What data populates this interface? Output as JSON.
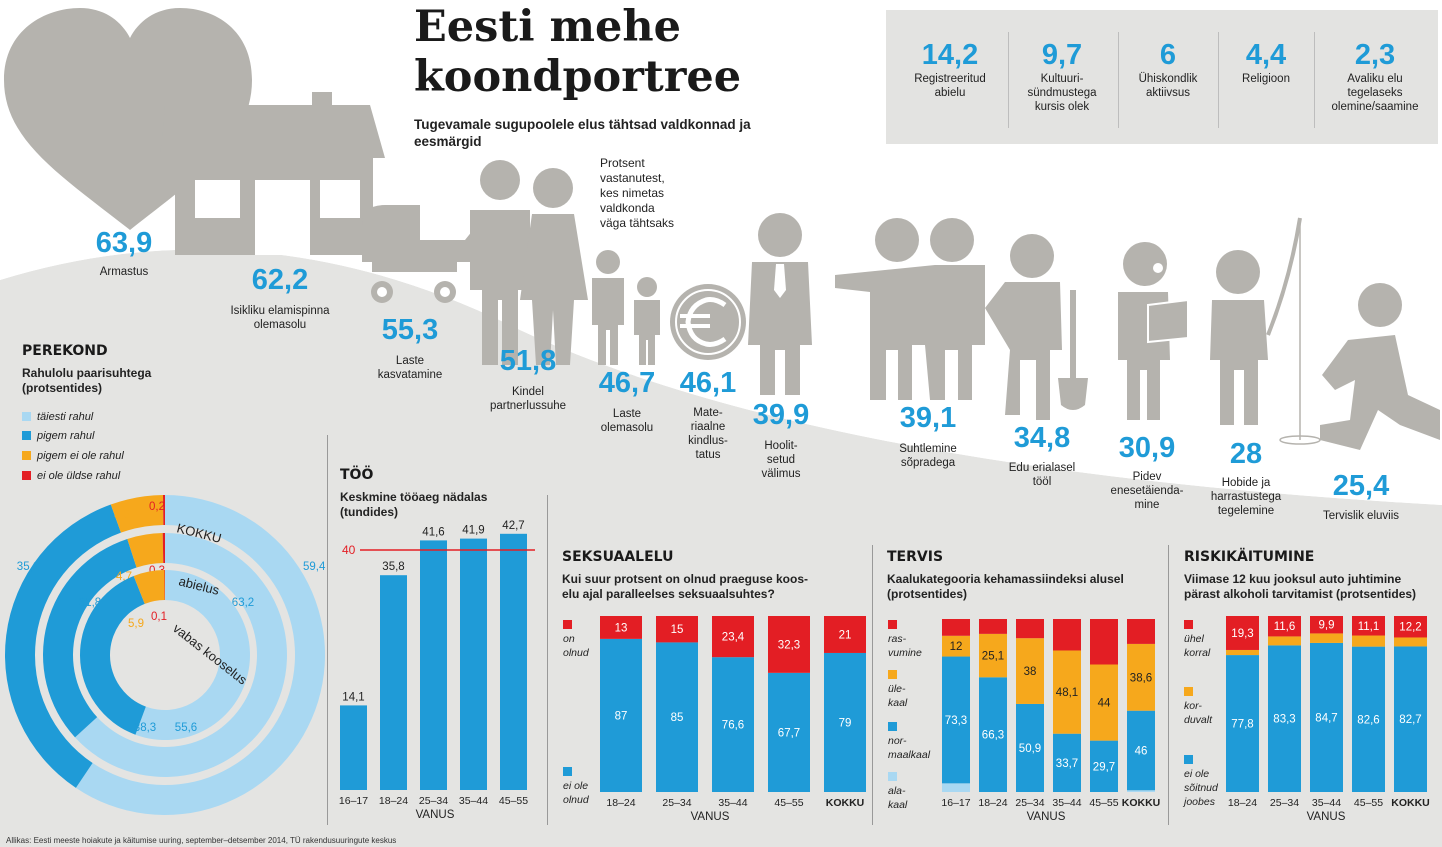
{
  "header": {
    "title": "Eesti mehe\nkoondportree",
    "subtitle": "Tugevamale sugupoolele elus tähtsad valdkonnad ja eesmärgid",
    "note": "Protsent\nvastanutest,\nkes nimetas\nvaldkonda\nväga tähtsaks"
  },
  "top_stats": [
    {
      "value": "14,2",
      "label": "Registreeritud\nabielu"
    },
    {
      "value": "9,7",
      "label": "Kultuuri-\nsündmustega\nkursis olek"
    },
    {
      "value": "6",
      "label": "Ühiskondlik\naktiivsus"
    },
    {
      "value": "4,4",
      "label": "Religioon"
    },
    {
      "value": "2,3",
      "label": "Avaliku elu\ntegelaseks\nolemine/saamine"
    }
  ],
  "priorities": [
    {
      "value": "63,9",
      "label": "Armastus",
      "icon": "heart-icon"
    },
    {
      "value": "62,2",
      "label": "Isikliku elamispinna\nolemasolu",
      "icon": "house-icon"
    },
    {
      "value": "55,3",
      "label": "Laste\nkasvatamine",
      "icon": "stroller-icon"
    },
    {
      "value": "51,8",
      "label": "Kindel\npartnerlussuhe",
      "icon": "couple-icon"
    },
    {
      "value": "46,7",
      "label": "Laste\nolemasolu",
      "icon": "children-icon"
    },
    {
      "value": "46,1",
      "label": "Mate-\nriaalne\nkindlus-\ntatus",
      "icon": "euro-coin-icon"
    },
    {
      "value": "39,9",
      "label": "Hoolit-\nsetud\nvälimus",
      "icon": "man-with-tie-icon"
    },
    {
      "value": "39,1",
      "label": "Suhtlemine\nsõpradega",
      "icon": "friends-icon"
    },
    {
      "value": "34,8",
      "label": "Edu erialasel\ntööl",
      "icon": "worker-shovel-icon"
    },
    {
      "value": "30,9",
      "label": "Pidev\nenesetäienda-\nmine",
      "icon": "reader-icon"
    },
    {
      "value": "28",
      "label": "Hobide ja\nharrastustega\ntegelemine",
      "icon": "fishing-icon"
    },
    {
      "value": "25,4",
      "label": "Tervislik eluviis",
      "icon": "runner-icon"
    }
  ],
  "colors": {
    "blue_dark": "#1f9bd7",
    "blue_light": "#a9d8f2",
    "orange": "#f6a81c",
    "red": "#e31e24",
    "grey_icon": "#b5b3ae",
    "grey_bg": "#e4e4e2"
  },
  "perekond": {
    "heading": "PEREKOND",
    "sub": "Rahulolu paarisuhtega\n(protsentides)",
    "legend": [
      "täiesti rahul",
      "pigem rahul",
      "pigem ei ole rahul",
      "ei ole üldse rahul"
    ]
  },
  "too": {
    "heading": "TÖÖ",
    "sub": "Keskmine tööaeg nädalas\n(tundides)",
    "ref_label": "40",
    "axis_title": "VANUS"
  },
  "seks": {
    "heading": "SEKSUAALELU",
    "sub": "Kui suur protsent on olnud praeguse koos-\nelu ajal paralleelses seksuaalsuhtes?",
    "legend": [
      "on\nolnud",
      "ei ole\nolnud"
    ],
    "axis_title": "VANUS"
  },
  "tervis": {
    "heading": "TERVIS",
    "sub": "Kaalukategooria kehamassiindeksi alusel\n(protsentides)",
    "legend": [
      "ras-\nvumine",
      "üle-\nkaal",
      "nor-\nmaalkaal",
      "ala-\nkaal"
    ],
    "axis_title": "VANUS"
  },
  "risk": {
    "heading": "RISKIKÄITUMINE",
    "sub": "Viimase 12 kuu jooksul auto juhtimine\npärast alkoholi tarvitamist (protsentides)",
    "legend": [
      "ühel\nkorral",
      "kor-\nduvalt",
      "ei ole\nsõitnud\njoobes"
    ],
    "axis_title": "VANUS"
  },
  "chart_data": [
    {
      "type": "pie",
      "name": "Rahulolu paarisuhtega",
      "title": "Rahulolu paarisuhtega (protsentides)",
      "rings": [
        "KOKKU",
        "abielus",
        "vabas kooselus"
      ],
      "series": [
        {
          "name": "KOKKU",
          "values": [
            59.4,
            35.1,
            5.3,
            0.2
          ],
          "labels": [
            "59,4",
            "35,1",
            "5,3",
            "0,2"
          ]
        },
        {
          "name": "abielus",
          "values": [
            63.2,
            31.8,
            4.7,
            0.3
          ],
          "labels": [
            "63,2",
            "31,8",
            "4,7",
            "0,3"
          ]
        },
        {
          "name": "vabas kooselus",
          "values": [
            55.6,
            38.3,
            5.9,
            0.1
          ],
          "labels": [
            "55,6",
            "38,3",
            "5,9",
            "0,1"
          ]
        }
      ],
      "categories": [
        "täiesti rahul",
        "pigem rahul",
        "pigem ei ole rahul",
        "ei ole üldse rahul"
      ]
    },
    {
      "type": "bar",
      "name": "TÖÖ",
      "title": "Keskmine tööaeg nädalas (tundides)",
      "categories": [
        "16–17",
        "18–24",
        "25–34",
        "35–44",
        "45–55"
      ],
      "values": [
        14.1,
        35.8,
        41.6,
        41.9,
        42.7
      ],
      "labels": [
        "14,1",
        "35,8",
        "41,6",
        "41,9",
        "42,7"
      ],
      "reference_line": 40,
      "xlabel": "VANUS",
      "ylabel": "",
      "ylim": [
        0,
        45
      ]
    },
    {
      "type": "bar",
      "stacked": true,
      "name": "SEKSUAALELU",
      "title": "Kui suur protsent on olnud praeguse kooselu ajal paralleelses seksuaalsuhtes?",
      "categories": [
        "18–24",
        "25–34",
        "35–44",
        "45–55",
        "KOKKU"
      ],
      "series": [
        {
          "name": "ei ole olnud",
          "values": [
            87,
            85,
            76.6,
            67.7,
            79
          ],
          "labels": [
            "87",
            "85",
            "76,6",
            "67,7",
            "79"
          ]
        },
        {
          "name": "on olnud",
          "values": [
            13,
            15,
            23.4,
            32.3,
            21
          ],
          "labels": [
            "13",
            "15",
            "23,4",
            "32,3",
            "21"
          ]
        }
      ],
      "xlabel": "VANUS",
      "ylim": [
        0,
        100
      ]
    },
    {
      "type": "bar",
      "stacked": true,
      "name": "TERVIS",
      "title": "Kaalukategooria kehamassiindeksi alusel (protsentides)",
      "categories": [
        "16–17",
        "18–24",
        "25–34",
        "35–44",
        "45–55",
        "KOKKU"
      ],
      "series": [
        {
          "name": "alakaal",
          "values": [
            5,
            0,
            0,
            0,
            0,
            1
          ],
          "labels": [
            "",
            "",
            "",
            "",
            "",
            ""
          ]
        },
        {
          "name": "normaalkaal",
          "values": [
            73.3,
            66.3,
            50.9,
            33.7,
            29.7,
            46
          ],
          "labels": [
            "73,3",
            "66,3",
            "50,9",
            "33,7",
            "29,7",
            "46"
          ]
        },
        {
          "name": "ülekaal",
          "values": [
            12,
            25.1,
            38,
            48.1,
            44,
            38.6
          ],
          "labels": [
            "12",
            "25,1",
            "38",
            "48,1",
            "44",
            "38,6"
          ]
        },
        {
          "name": "rasvumine",
          "values": [
            9.7,
            8.6,
            11.1,
            18.2,
            26.3,
            14.4
          ],
          "labels": [
            "",
            "",
            "",
            "",
            "",
            ""
          ]
        }
      ],
      "xlabel": "VANUS",
      "ylim": [
        0,
        100
      ]
    },
    {
      "type": "bar",
      "stacked": true,
      "name": "RISKIKÄITUMINE",
      "title": "Viimase 12 kuu jooksul auto juhtimine pärast alkoholi tarvitamist (protsentides)",
      "categories": [
        "18–24",
        "25–34",
        "35–44",
        "45–55",
        "KOKKU"
      ],
      "series": [
        {
          "name": "ei ole sõitnud joobes",
          "values": [
            77.8,
            83.3,
            84.7,
            82.6,
            82.7
          ],
          "labels": [
            "77,8",
            "83,3",
            "84,7",
            "82,6",
            "82,7"
          ]
        },
        {
          "name": "korduvalt",
          "values": [
            2.9,
            5.1,
            5.4,
            6.3,
            5.1
          ],
          "labels": [
            "",
            "",
            "",
            "",
            ""
          ]
        },
        {
          "name": "ühel korral",
          "values": [
            19.3,
            11.6,
            9.9,
            11.1,
            12.2
          ],
          "labels": [
            "19,3",
            "11,6",
            "9,9",
            "11,1",
            "12,2"
          ]
        }
      ],
      "xlabel": "VANUS",
      "ylim": [
        0,
        100
      ]
    }
  ],
  "source": "Allikas: Eesti meeste hoiakute ja käitumise uuring, september–detsember 2014, TÜ rakendusuuringute keskus"
}
